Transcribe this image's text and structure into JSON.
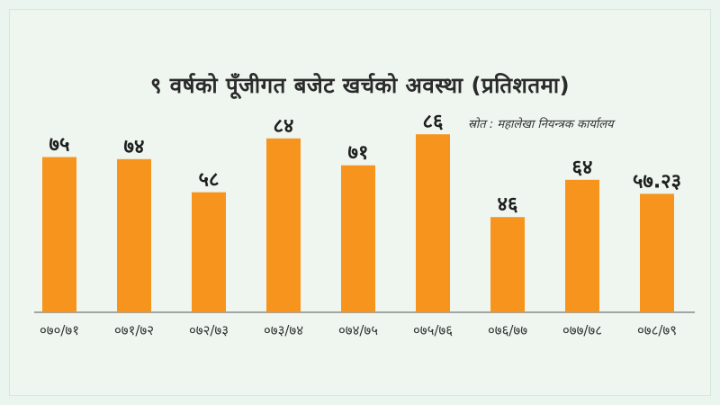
{
  "header": {
    "title": "९ वर्षको पूँजीगत बजेट खर्चको अवस्था (प्रतिशतमा)",
    "source": "स्रोत : महालेखा नियन्त्रक कार्यालय"
  },
  "colors": {
    "bar": "#f7941d",
    "axis": "#555555",
    "background": "#eef6ef"
  },
  "chart_data": {
    "type": "bar",
    "title": "९ वर्षको पूँजीगत बजेट खर्चको अवस्था (प्रतिशतमा)",
    "xlabel": "",
    "ylabel": "",
    "ylim": [
      0,
      100
    ],
    "grid": false,
    "categories": [
      "०७०/७१",
      "०७१/७२",
      "०७२/७३",
      "०७३/७४",
      "०७४/७५",
      "०७५/७६",
      "०७६/७७",
      "०७७/७८",
      "०७८/७९"
    ],
    "values": [
      75,
      74,
      58,
      84,
      71,
      86,
      46,
      64,
      57.23
    ],
    "value_labels": [
      "७५",
      "७४",
      "५८",
      "८४",
      "७१",
      "८६",
      "४६",
      "६४",
      "५७.२३"
    ]
  }
}
